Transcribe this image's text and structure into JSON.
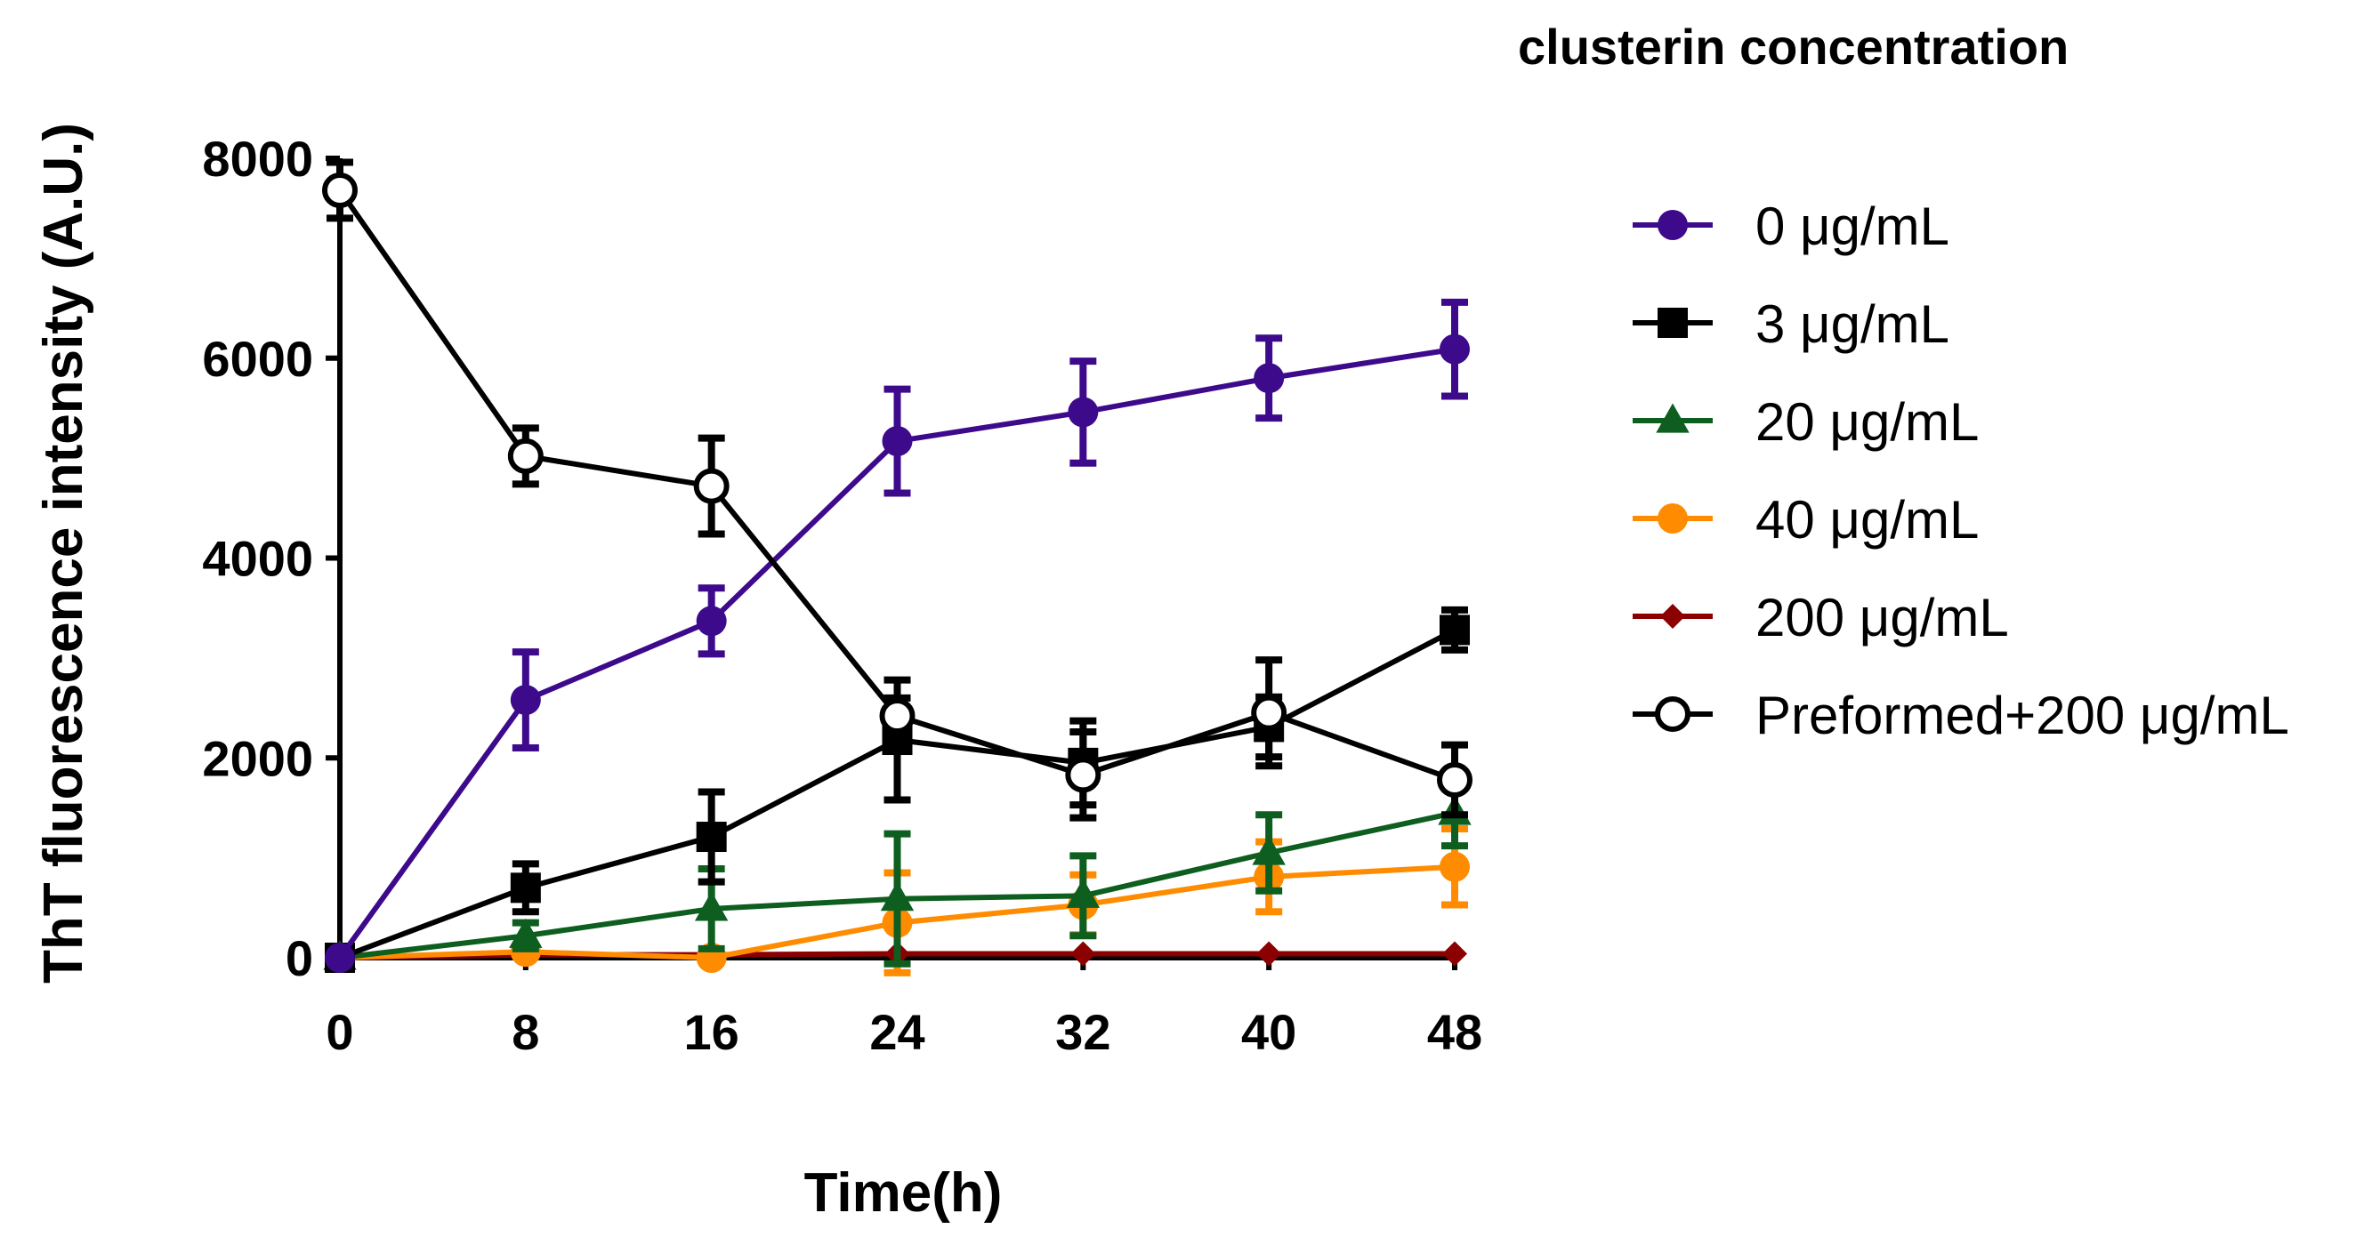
{
  "chart_data": {
    "type": "line",
    "title": "",
    "xlabel": "Time(h)",
    "ylabel": "ThT fluorescence intensity (A.U.)",
    "legend_title": "clusterin concentration",
    "legend_position": "right",
    "xlim": [
      0,
      48
    ],
    "ylim": [
      0,
      8000
    ],
    "x": [
      0,
      8,
      16,
      24,
      32,
      40,
      48
    ],
    "xticks": [
      "0",
      "8",
      "16",
      "24",
      "32",
      "40",
      "48"
    ],
    "yticks": [
      "0",
      "2000",
      "4000",
      "6000",
      "8000"
    ],
    "grid": false,
    "series": [
      {
        "name": "0 μg/mL",
        "color": "#3d0a8c",
        "marker": "circle",
        "values": [
          0,
          2580,
          3370,
          5170,
          5460,
          5800,
          6090
        ],
        "errors": [
          0,
          480,
          330,
          520,
          510,
          400,
          470
        ]
      },
      {
        "name": "3 μg/mL",
        "color": "#000000",
        "marker": "square",
        "values": [
          0,
          700,
          1210,
          2180,
          1950,
          2310,
          3280
        ],
        "errors": [
          0,
          240,
          450,
          600,
          420,
          300,
          200
        ]
      },
      {
        "name": "20 μg/mL",
        "color": "#0d5e1f",
        "marker": "triangle",
        "values": [
          0,
          220,
          490,
          590,
          620,
          1050,
          1450
        ],
        "errors": [
          0,
          130,
          400,
          650,
          400,
          380,
          330
        ]
      },
      {
        "name": "40 μg/mL",
        "color": "#ff8c00",
        "marker": "circle",
        "values": [
          0,
          60,
          0,
          350,
          530,
          810,
          910
        ],
        "errors": [
          0,
          40,
          0,
          500,
          300,
          350,
          380
        ]
      },
      {
        "name": "200 μg/mL",
        "color": "#8b0000",
        "marker": "diamond",
        "values": [
          0,
          30,
          30,
          40,
          40,
          40,
          40
        ],
        "errors": [
          0,
          0,
          0,
          0,
          0,
          0,
          0
        ]
      },
      {
        "name": "Preformed+200 μg/mL",
        "color": "#000000",
        "marker": "open-circle",
        "values": [
          7680,
          5020,
          4720,
          2420,
          1830,
          2450,
          1780
        ],
        "errors": [
          280,
          280,
          480,
          180,
          430,
          530,
          350
        ]
      }
    ]
  }
}
